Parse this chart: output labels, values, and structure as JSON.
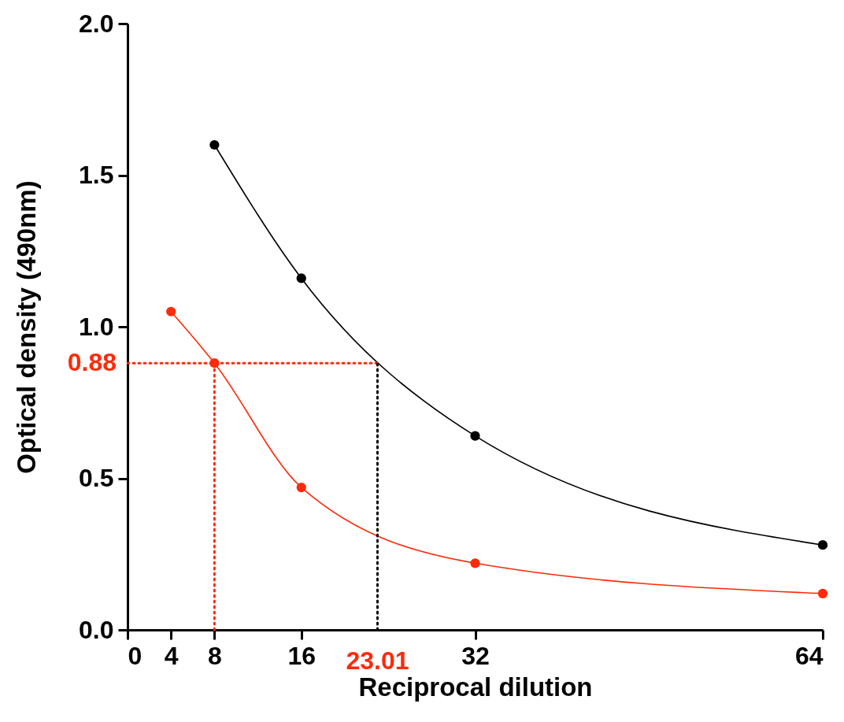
{
  "chart_data": {
    "type": "line",
    "xlabel": "Reciprocal dilution",
    "ylabel": "Optical density (490nm)",
    "xlim": [
      0,
      64
    ],
    "xticks": [
      0,
      4,
      8,
      16,
      32,
      64
    ],
    "ylim": [
      0,
      2
    ],
    "yticks": [
      {
        "value": 0,
        "label": "0.0"
      },
      0.5,
      {
        "value": 1,
        "label": "1.0"
      },
      1.5,
      {
        "value": 2,
        "label": "2.0"
      }
    ],
    "grid": false,
    "legend": false,
    "marker": "circle",
    "line_style": "solid",
    "series": [
      {
        "color": "#000000",
        "x": [
          8,
          16,
          32,
          64
        ],
        "values": [
          1.6,
          1.16,
          0.64,
          0.28
        ]
      },
      {
        "color": "#ff2a0a",
        "x": [
          4,
          8,
          16,
          32,
          64
        ],
        "values": [
          1.05,
          0.88,
          0.47,
          0.22,
          0.12
        ]
      }
    ],
    "ref_lines": [
      {
        "axis": "y",
        "value": 0.88,
        "label": "0.88",
        "color": "#ff2a0a",
        "line_style": "dotted"
      },
      {
        "axis": "x",
        "value": 8,
        "color": "#ff2a0a",
        "line_style": "dotted"
      },
      {
        "axis": "x",
        "value": 23.01,
        "label": "23.01",
        "color": "#000000",
        "line_style": "dotted"
      }
    ]
  }
}
